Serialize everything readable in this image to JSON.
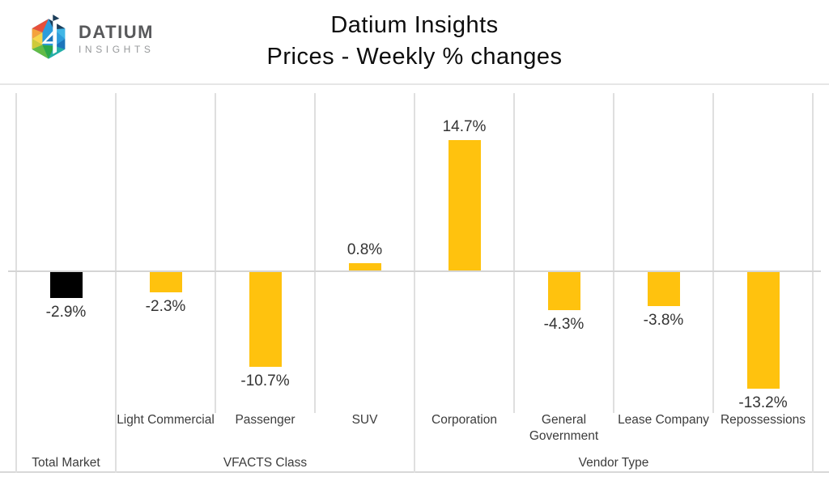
{
  "logo": {
    "brand": "DATIUM",
    "sub": "INSIGHTS"
  },
  "title": {
    "line1": "Datium Insights",
    "line2": "Prices - Weekly % changes"
  },
  "chart_data": {
    "type": "bar",
    "title": "Datium Insights Prices - Weekly % changes",
    "categories": [
      "Total Market",
      "Light Commercial",
      "Passenger",
      "SUV",
      "Corporation",
      "General Government",
      "Lease Company",
      "Repossessions"
    ],
    "values": [
      -2.9,
      -2.3,
      -10.7,
      0.8,
      14.7,
      -4.3,
      -3.8,
      -13.2
    ],
    "data_labels": [
      "-2.9%",
      "-2.3%",
      "-10.7%",
      "0.8%",
      "14.7%",
      "-4.3%",
      "-3.8%",
      "-13.2%"
    ],
    "tick_labels": [
      "",
      "Light Commercial",
      "Passenger",
      "SUV",
      "Corporation",
      "General Government",
      "Lease Company",
      "Repossessions"
    ],
    "axis_groups": [
      {
        "label": "Total Market",
        "start": 0,
        "end": 1
      },
      {
        "label": "VFACTS Class",
        "start": 1,
        "end": 4
      },
      {
        "label": "Vendor Type",
        "start": 4,
        "end": 8
      }
    ],
    "ylim": [
      -15,
      20
    ],
    "xlabel": "",
    "ylabel": "",
    "legend": "none",
    "grid": "vertical category separators + zero line only",
    "bar_colors": [
      "#000000",
      "#FFC20E",
      "#FFC20E",
      "#FFC20E",
      "#FFC20E",
      "#FFC20E",
      "#FFC20E",
      "#FFC20E"
    ],
    "accent_color": "#FFC20E",
    "highlight_color": "#000000"
  },
  "colors": {
    "gridline": "#DFDFDF",
    "zero_line": "#D5D5D5",
    "top_border": "#E6E6E6",
    "bottom_border": "#D8D8D8",
    "axis_text": "#3C3C3C",
    "data_label_text": "#333333",
    "logo_brand_text": "#58595B",
    "logo_sub_text": "#97999B"
  }
}
